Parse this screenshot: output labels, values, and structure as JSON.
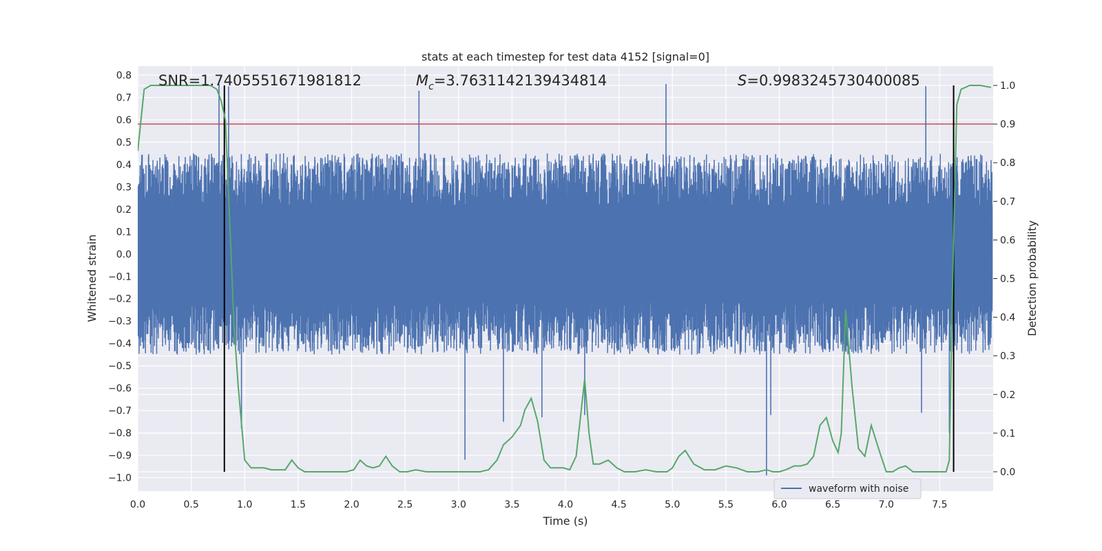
{
  "chart_data": {
    "type": "line",
    "title": "stats at each timestep for test data 4152 [signal=0]",
    "xlabel": "Time (s)",
    "ylabel": "Whitened strain",
    "ylabel_right": "Detection probability",
    "xlim": [
      0.0,
      8.0
    ],
    "ylim": [
      -1.06,
      0.84
    ],
    "ylim_right": [
      -0.05,
      1.05
    ],
    "x_ticks": [
      0.0,
      0.5,
      1.0,
      1.5,
      2.0,
      2.5,
      3.0,
      3.5,
      4.0,
      4.5,
      5.0,
      5.5,
      6.0,
      6.5,
      7.0,
      7.5
    ],
    "x_tick_labels": [
      "0.0",
      "0.5",
      "1.0",
      "1.5",
      "2.0",
      "2.5",
      "3.0",
      "3.5",
      "4.0",
      "4.5",
      "5.0",
      "5.5",
      "6.0",
      "6.5",
      "7.0",
      "7.5"
    ],
    "y_ticks": [
      -1.0,
      -0.9,
      -0.8,
      -0.7,
      -0.6,
      -0.5,
      -0.4,
      -0.3,
      -0.2,
      -0.1,
      0.0,
      0.1,
      0.2,
      0.3,
      0.4,
      0.5,
      0.6,
      0.7,
      0.8
    ],
    "y_tick_labels": [
      "−1.0",
      "−0.9",
      "−0.8",
      "−0.7",
      "−0.6",
      "−0.5",
      "−0.4",
      "−0.3",
      "−0.2",
      "−0.1",
      "0.0",
      "0.1",
      "0.2",
      "0.3",
      "0.4",
      "0.5",
      "0.6",
      "0.7",
      "0.8"
    ],
    "y2_ticks": [
      0.0,
      0.1,
      0.2,
      0.3,
      0.4,
      0.5,
      0.6,
      0.7,
      0.8,
      0.9,
      1.0
    ],
    "y2_tick_labels": [
      "0.0",
      "0.1",
      "0.2",
      "0.3",
      "0.4",
      "0.5",
      "0.6",
      "0.7",
      "0.8",
      "0.9",
      "1.0"
    ],
    "grid": true,
    "legend": {
      "placement": "bottom-right",
      "entries": [
        "waveform with noise"
      ]
    },
    "annotations": {
      "snr": "SNR=1.7405551671981812",
      "mc_symbol": "M",
      "mc_sub": "c",
      "mc_value": "=3.7631142139434814",
      "s_symbol": "S",
      "s_value": "=0.9983245730400085"
    },
    "threshold": 0.9,
    "vlines_x": [
      0.81,
      7.63
    ],
    "waveform": {
      "name": "waveform with noise",
      "color": "#4c72b0",
      "t_end": 7.99,
      "core_amplitude": 0.22,
      "typical_peak_range": [
        -0.45,
        0.45
      ],
      "extreme_spikes": [
        {
          "x": 0.85,
          "y": 0.75
        },
        {
          "x": 0.76,
          "y": 0.76
        },
        {
          "x": 4.94,
          "y": 0.76
        },
        {
          "x": 2.63,
          "y": 0.73
        },
        {
          "x": 7.37,
          "y": 0.75
        },
        {
          "x": 0.97,
          "y": -0.78
        },
        {
          "x": 3.06,
          "y": -0.92
        },
        {
          "x": 3.42,
          "y": -0.75
        },
        {
          "x": 3.78,
          "y": -0.73
        },
        {
          "x": 4.18,
          "y": -0.72
        },
        {
          "x": 5.88,
          "y": -0.99
        },
        {
          "x": 5.92,
          "y": -0.72
        },
        {
          "x": 7.33,
          "y": -0.71
        },
        {
          "x": 6.55,
          "y": -0.31
        },
        {
          "x": 7.59,
          "y": -0.8
        }
      ]
    },
    "probability": {
      "color": "#55a868",
      "x": [
        0.0,
        0.06,
        0.12,
        0.2,
        0.3,
        0.4,
        0.5,
        0.6,
        0.68,
        0.74,
        0.78,
        0.82,
        0.86,
        0.9,
        0.94,
        1.0,
        1.06,
        1.12,
        1.18,
        1.25,
        1.32,
        1.38,
        1.44,
        1.5,
        1.56,
        1.65,
        1.75,
        1.85,
        1.95,
        2.02,
        2.08,
        2.14,
        2.2,
        2.26,
        2.32,
        2.38,
        2.45,
        2.52,
        2.6,
        2.7,
        2.8,
        2.9,
        3.0,
        3.1,
        3.2,
        3.28,
        3.36,
        3.42,
        3.5,
        3.58,
        3.62,
        3.68,
        3.74,
        3.8,
        3.86,
        3.92,
        3.98,
        4.04,
        4.1,
        4.14,
        4.18,
        4.22,
        4.26,
        4.32,
        4.4,
        4.48,
        4.55,
        4.65,
        4.75,
        4.85,
        4.95,
        5.0,
        5.06,
        5.12,
        5.2,
        5.3,
        5.4,
        5.5,
        5.6,
        5.7,
        5.8,
        5.88,
        5.94,
        6.0,
        6.06,
        6.14,
        6.2,
        6.26,
        6.32,
        6.38,
        6.44,
        6.5,
        6.55,
        6.58,
        6.62,
        6.68,
        6.74,
        6.8,
        6.86,
        6.94,
        7.0,
        7.06,
        7.12,
        7.18,
        7.25,
        7.35,
        7.45,
        7.52,
        7.56,
        7.59,
        7.62,
        7.66,
        7.7,
        7.78,
        7.88,
        7.98
      ],
      "y": [
        0.83,
        0.99,
        1.0,
        1.0,
        1.0,
        1.0,
        1.0,
        1.0,
        1.0,
        0.99,
        0.96,
        0.91,
        0.65,
        0.38,
        0.22,
        0.03,
        0.01,
        0.01,
        0.01,
        0.005,
        0.005,
        0.005,
        0.03,
        0.01,
        0.0,
        0.0,
        0.0,
        0.0,
        0.0,
        0.005,
        0.03,
        0.015,
        0.01,
        0.015,
        0.04,
        0.015,
        0.0,
        0.0,
        0.005,
        0.0,
        0.0,
        0.0,
        0.0,
        0.0,
        0.0,
        0.005,
        0.03,
        0.07,
        0.09,
        0.12,
        0.16,
        0.19,
        0.13,
        0.03,
        0.01,
        0.01,
        0.01,
        0.005,
        0.04,
        0.14,
        0.24,
        0.1,
        0.02,
        0.02,
        0.03,
        0.01,
        0.0,
        0.0,
        0.005,
        0.0,
        0.0,
        0.01,
        0.04,
        0.055,
        0.02,
        0.005,
        0.005,
        0.015,
        0.01,
        0.0,
        0.0,
        0.005,
        0.0,
        0.0,
        0.005,
        0.015,
        0.015,
        0.02,
        0.04,
        0.12,
        0.14,
        0.08,
        0.05,
        0.1,
        0.42,
        0.22,
        0.06,
        0.04,
        0.12,
        0.05,
        0.0,
        0.0,
        0.01,
        0.015,
        0.0,
        0.0,
        0.0,
        0.0,
        0.0,
        0.03,
        0.48,
        0.95,
        0.99,
        1.0,
        1.0,
        0.995
      ]
    }
  }
}
